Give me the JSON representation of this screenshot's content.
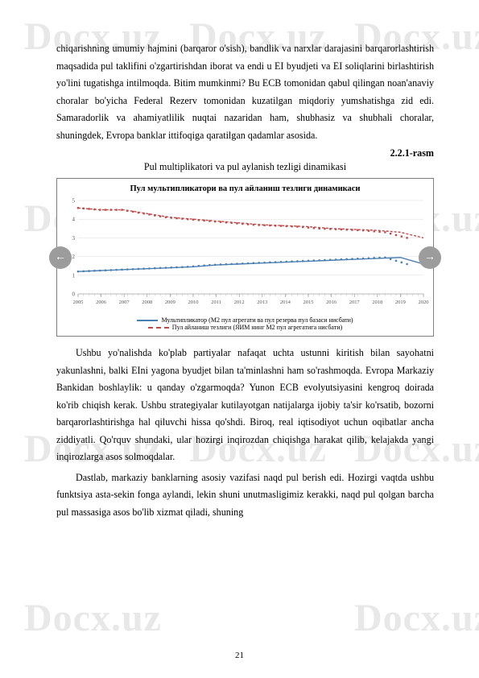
{
  "watermark_text": "Docx.uz",
  "para1": "chiqarishning umumiy hajmini (barqaror o'sish), bandlik va narxlar darajasini barqarorlashtirish maqsadida pul taklifini o'zgartirishdan iborat va endi u EI byudjeti va EI soliqlarini birlashtirish yo'lini tugatishga intilmoqda. Bitim mumkinmi? Bu ECB tomonidan qabul qilingan noan'anaviy choralar bo'yicha Federal Rezerv tomonidan kuzatilgan miqdoriy yumshatishga zid edi. Samaradorlik va ahamiyatlilik nuqtai nazaridan ham, shubhasiz va shubhali choralar, shuningdek, Evropa banklar ittifoqiga qaratilgan qadamlar asosida.",
  "figure_number": "2.2.1-rasm",
  "figure_title": "Pul multiplikatori va pul aylanish tezligi dinamikasi",
  "chart": {
    "title": "Пул мультипликатори ва пул айланиш тезлиги динамикаси",
    "years": [
      "2005",
      "2006",
      "2007",
      "2008",
      "2009",
      "2010",
      "2011",
      "2012",
      "2013",
      "2014",
      "2015",
      "2016",
      "2017",
      "2018",
      "2019",
      "2020"
    ],
    "series_solid": {
      "color": "#4a7fb0",
      "label": "Мультипликатор (М2 пул агрегати ва пул резерва пул базаси нисбати)",
      "values": [
        1.2,
        1.25,
        1.3,
        1.35,
        1.4,
        1.45,
        1.55,
        1.6,
        1.65,
        1.7,
        1.75,
        1.8,
        1.85,
        1.9,
        1.95,
        1.6
      ]
    },
    "series_dash": {
      "color": "#c04a4a",
      "label": "Пул айланиш тезлиги (ЯИМ нинг М2 пул агрегатига нисбати)",
      "values": [
        4.6,
        4.5,
        4.5,
        4.3,
        4.1,
        4.0,
        3.9,
        3.8,
        3.7,
        3.65,
        3.6,
        3.5,
        3.45,
        3.4,
        3.3,
        3.0
      ]
    },
    "ylim": [
      0,
      5
    ],
    "ytick_step": 1,
    "background": "#ffffff",
    "grid_color": "#dcdcdc"
  },
  "para2": "Ushbu yo'nalishda ko'plab partiyalar nafaqat uchta ustunni kiritish bilan sayohatni yakunlashni, balki EIni yagona byudjet bilan ta'minlashni ham so'rashmoqda. Evropa Markaziy Bankidan boshlaylik: u qanday o'zgarmoqda? Yunon ECB evolyutsiyasini kengroq doirada ko'rib chiqish kerak. Ushbu strategiyalar kutilayotgan natijalarga ijobiy ta'sir ko'rsatib, bozorni barqarorlashtirishga hal qiluvchi hissa qo'shdi. Biroq, real iqtisodiyot uchun oqibatlar ancha ziddiyatli. Qo'rquv shundaki, ular hozirgi inqirozdan chiqishga harakat qilib, kelajakda yangi inqirozlarga asos solmoqdalar.",
  "para3": "Dastlab, markaziy banklarning asosiy vazifasi naqd pul berish edi. Hozirgi vaqtda ushbu funktsiya asta-sekin fonga aylandi, lekin shuni unutmasligimiz kerakki, naqd pul qolgan barcha pul massasiga asos bo'lib xizmat qiladi, shuning",
  "page_number": "21"
}
